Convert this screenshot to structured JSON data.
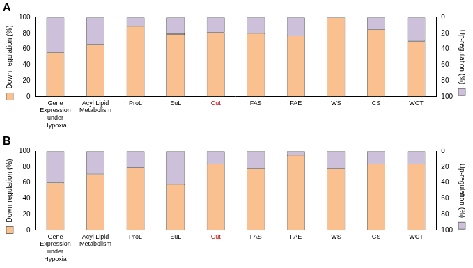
{
  "chart_data": [
    {
      "type": "bar",
      "title": "A",
      "categories": [
        "Gene Expression under Hypoxia",
        "Acyl Lipid Metabolism",
        "ProL",
        "EuL",
        "Cut",
        "FAS",
        "FAE",
        "WS",
        "CS",
        "WCT"
      ],
      "series": [
        {
          "name": "Down-regulation (%)",
          "color": "#fac090",
          "values": [
            56,
            66,
            89,
            79,
            81,
            80,
            77,
            100,
            85,
            70
          ]
        },
        {
          "name": "Up-regulation (%)",
          "color": "#ccc0da",
          "axis": "y2",
          "values": [
            44,
            34,
            11,
            21,
            19,
            20,
            23,
            0,
            15,
            30
          ]
        }
      ],
      "ylim": [
        0,
        100
      ],
      "yticks": [
        0,
        20,
        40,
        60,
        80,
        100
      ],
      "y2lim": [
        100,
        0
      ],
      "y2ticks": [
        0,
        20,
        40,
        60,
        80,
        100
      ],
      "grid": false
    },
    {
      "type": "bar",
      "title": "B",
      "categories": [
        "Gene Expression under Hypoxia",
        "Acyl Lipid Metabolism",
        "ProL",
        "EuL",
        "Cut",
        "FAS",
        "FAE",
        "WS",
        "CS",
        "WCT"
      ],
      "series": [
        {
          "name": "Down-regulation (%)",
          "color": "#fac090",
          "values": [
            60,
            71,
            79,
            58,
            84,
            78,
            95,
            78,
            84,
            84
          ]
        },
        {
          "name": "Up-regulation (%)",
          "color": "#ccc0da",
          "axis": "y2",
          "values": [
            40,
            29,
            21,
            42,
            16,
            22,
            5,
            22,
            16,
            16
          ]
        }
      ],
      "ylim": [
        0,
        100
      ],
      "yticks": [
        0,
        20,
        40,
        60,
        80,
        100
      ],
      "y2lim": [
        100,
        0
      ],
      "y2ticks": [
        0,
        20,
        40,
        60,
        80,
        100
      ],
      "grid": false
    }
  ]
}
